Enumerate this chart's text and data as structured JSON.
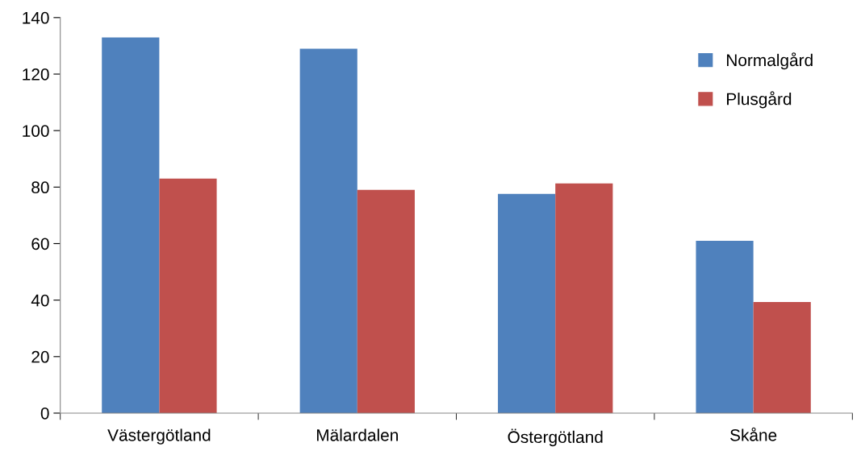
{
  "chart_data": {
    "type": "bar",
    "categories": [
      "Västergötland",
      "Mälardalen",
      "Östergötland",
      "Skåne"
    ],
    "series": [
      {
        "name": "Normalgård",
        "color": "#4f81bd",
        "values": [
          133,
          129,
          77.6,
          61
        ]
      },
      {
        "name": "Plusgård",
        "color": "#c0504d",
        "values": [
          83,
          79,
          81.3,
          39.3
        ]
      }
    ],
    "ylim": [
      0,
      140
    ],
    "yticks": [
      0,
      20,
      40,
      60,
      80,
      100,
      120,
      140
    ],
    "grid": false,
    "legend": "top right"
  }
}
